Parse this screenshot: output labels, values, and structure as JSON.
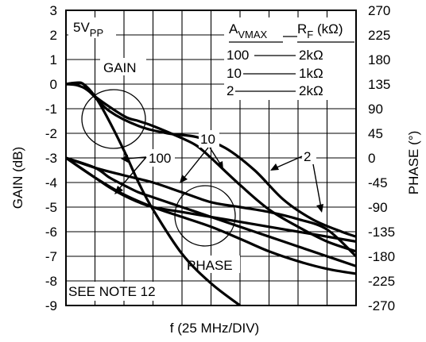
{
  "chart_data": {
    "type": "line",
    "xlabel": "f (25 MHz/DIV)",
    "ylabel_left": "GAIN (dB)",
    "ylabel_right": "PHASE (°)",
    "x": {
      "divisions": 10,
      "unit": "MHz",
      "per_division": 25,
      "range": [
        0,
        250
      ]
    },
    "y_left": {
      "range": [
        -9,
        3
      ],
      "step": 1,
      "ticks": [
        "3",
        "2",
        "1",
        "0",
        "-1",
        "-2",
        "-3",
        "-4",
        "-5",
        "-6",
        "-7",
        "-8",
        "-9"
      ]
    },
    "y_right": {
      "range": [
        -270,
        270
      ],
      "step": 45,
      "ticks": [
        "270",
        "225",
        "180",
        "135",
        "90",
        "45",
        "0",
        "-45",
        "-90",
        "-135",
        "-180",
        "-225",
        "-270"
      ]
    },
    "grid": true,
    "annotations": {
      "supply": "5V",
      "supply_sub": "PP",
      "gain_label": "GAIN",
      "phase_label": "PHASE",
      "note": "SEE NOTE 12",
      "callout_100": "100",
      "callout_10": "10",
      "callout_2": "2"
    },
    "legend_table": {
      "col1_main": "A",
      "col1_sub": "VMAX",
      "col2_main": "R",
      "col2_sub": "F",
      "col2_unit": " (kΩ)",
      "rows": [
        {
          "gain": "100",
          "rf": "2kΩ"
        },
        {
          "gain": "10",
          "rf": "1kΩ"
        },
        {
          "gain": "2",
          "rf": "2kΩ"
        }
      ]
    },
    "series": [
      {
        "kind": "gain",
        "axis": "left",
        "x": [
          0,
          8,
          15,
          25,
          35,
          50,
          62.5,
          75,
          100,
          125,
          150
        ],
        "y": [
          0,
          0.05,
          0,
          -0.5,
          -1.3,
          -2.7,
          -4.0,
          -5.1,
          -6.9,
          -8.1,
          -9.0
        ]
      },
      {
        "kind": "gain",
        "axis": "left",
        "x": [
          0,
          10,
          15,
          25,
          50,
          62.5,
          75,
          100,
          112.5,
          125,
          150,
          175,
          200,
          225,
          250
        ],
        "y": [
          0,
          0.05,
          0,
          -0.5,
          -1.3,
          -1.5,
          -1.7,
          -2.2,
          -2.5,
          -3.0,
          -4.1,
          -5.1,
          -5.8,
          -6.4,
          -6.8
        ]
      },
      {
        "kind": "gain",
        "axis": "left",
        "x": [
          0,
          10,
          20,
          37.5,
          62.5,
          87.5,
          112.5,
          137.5,
          162.5,
          187.5,
          212.5,
          237.5,
          250
        ],
        "y": [
          0,
          -0.05,
          -0.3,
          -1.1,
          -1.7,
          -2.0,
          -2.15,
          -2.6,
          -3.5,
          -4.7,
          -5.5,
          -6.0,
          -6.2
        ]
      },
      {
        "kind": "phase",
        "axis": "right",
        "x": [
          0,
          25,
          37.5,
          50,
          62.5,
          75,
          100,
          125,
          150,
          175,
          200,
          225,
          250
        ],
        "y": [
          0,
          -36,
          -54,
          -69,
          -81,
          -90,
          -99,
          -108,
          -117,
          -126,
          -135,
          -144,
          -153
        ]
      },
      {
        "kind": "phase",
        "axis": "right",
        "x": [
          0,
          25,
          37.5,
          50,
          62.5,
          75,
          100,
          125,
          150,
          175,
          200,
          225,
          250
        ],
        "y": [
          0,
          -18,
          -36,
          -50,
          -63,
          -72,
          -90,
          -108,
          -126,
          -144,
          -162,
          -180,
          -198
        ]
      },
      {
        "kind": "phase",
        "axis": "right",
        "x": [
          0,
          25,
          50,
          75,
          100,
          125,
          150,
          175,
          200,
          225,
          250
        ],
        "y": [
          0,
          -18,
          -32,
          -45,
          -63,
          -81,
          -90,
          -99,
          -112,
          -131,
          -180
        ]
      },
      {
        "kind": "phase",
        "axis": "right",
        "x": [
          0,
          25,
          50,
          75,
          100,
          125,
          150,
          175,
          200,
          225,
          250
        ],
        "y": [
          0,
          -36,
          -67,
          -90,
          -108,
          -126,
          -148,
          -171,
          -189,
          -203,
          -212
        ]
      }
    ]
  }
}
